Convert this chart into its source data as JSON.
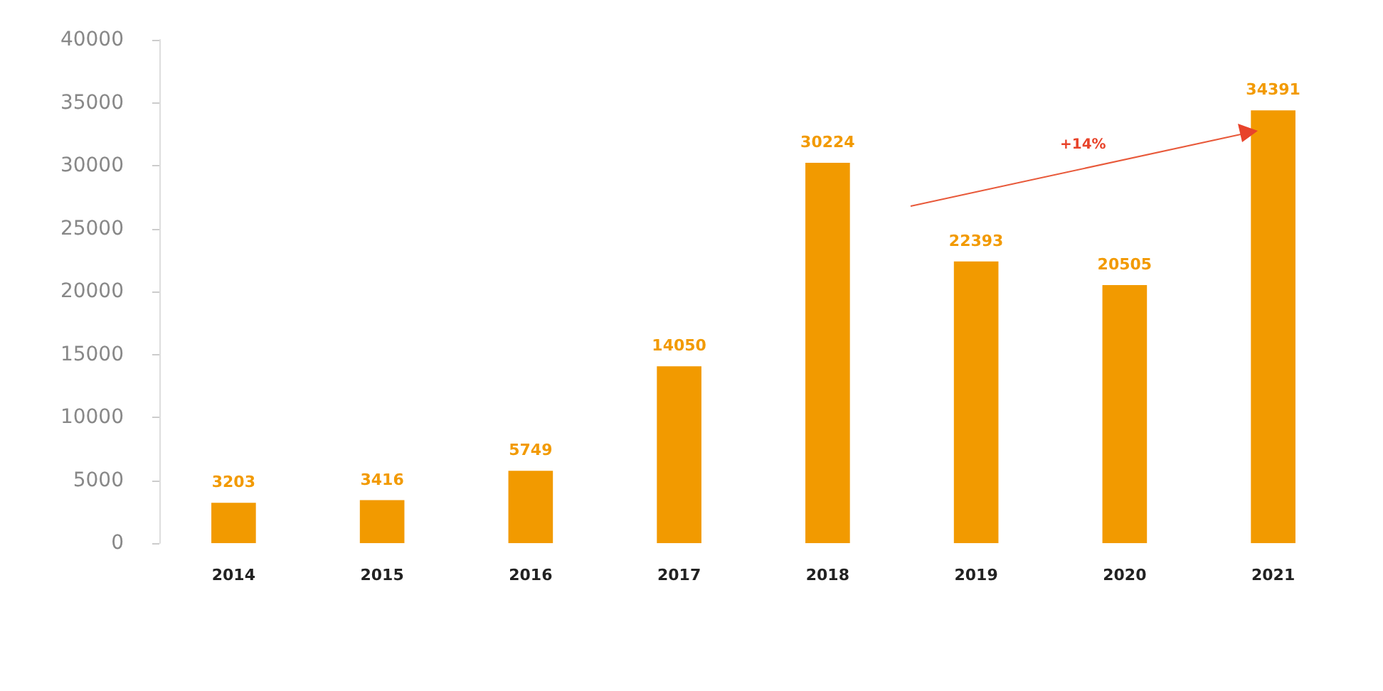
{
  "chart_data": {
    "type": "bar",
    "categories": [
      "2014",
      "2015",
      "2016",
      "2017",
      "2018",
      "2019",
      "2020",
      "2021"
    ],
    "values": [
      3203,
      3416,
      5749,
      14050,
      30224,
      22393,
      20505,
      34391
    ],
    "color": "#f29a00",
    "ylim": [
      0,
      40000
    ],
    "yticks": [
      0,
      5000,
      10000,
      15000,
      20000,
      25000,
      30000,
      35000,
      40000
    ],
    "grid": false,
    "data_labels": true,
    "annotations": [
      "+14%"
    ]
  }
}
